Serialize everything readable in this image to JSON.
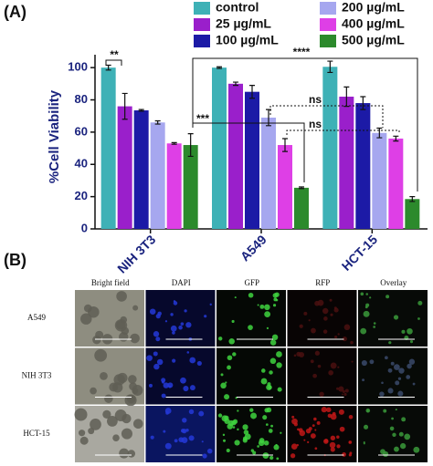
{
  "panel_labels": [
    "(A)",
    "(B)"
  ],
  "chart_data": {
    "type": "bar",
    "y_label": "%Cell Viability",
    "categories": [
      "NIH 3T3",
      "A549",
      "HCT-15"
    ],
    "series": [
      {
        "name": "control",
        "color": "#3eb1b6",
        "values": [
          100,
          100,
          100.5
        ],
        "errors": [
          1.5,
          0.5,
          3.5
        ]
      },
      {
        "name": "25 µg/mL",
        "color": "#9a1fcb",
        "values": [
          76,
          90,
          82
        ],
        "errors": [
          8,
          1,
          6
        ]
      },
      {
        "name": "100 µg/mL",
        "color": "#1c1aa6",
        "values": [
          73.5,
          85,
          78
        ],
        "errors": [
          0.5,
          4,
          4
        ]
      },
      {
        "name": "200 µg/mL",
        "color": "#a6a7ef",
        "values": [
          66,
          69,
          59.5
        ],
        "errors": [
          1,
          5,
          3
        ]
      },
      {
        "name": "400 µg/mL",
        "color": "#de3fe6",
        "values": [
          53,
          52,
          56
        ],
        "errors": [
          0.5,
          4,
          1.5
        ]
      },
      {
        "name": "500 µg/mL",
        "color": "#2c8a2c",
        "values": [
          52,
          25.5,
          18.5
        ],
        "errors": [
          7,
          0.5,
          1.5
        ]
      }
    ],
    "ylim": [
      0,
      108
    ],
    "yticks": [
      0,
      20,
      40,
      60,
      80,
      100
    ],
    "annotations": [
      "**",
      "****",
      "***",
      "ns",
      "ns"
    ]
  },
  "microscopy": {
    "columns": [
      "Bright field",
      "DAPI",
      "GFP",
      "RFP",
      "Overlay"
    ],
    "rows": [
      "A549",
      "NIH 3T3",
      "HCT-15"
    ]
  }
}
